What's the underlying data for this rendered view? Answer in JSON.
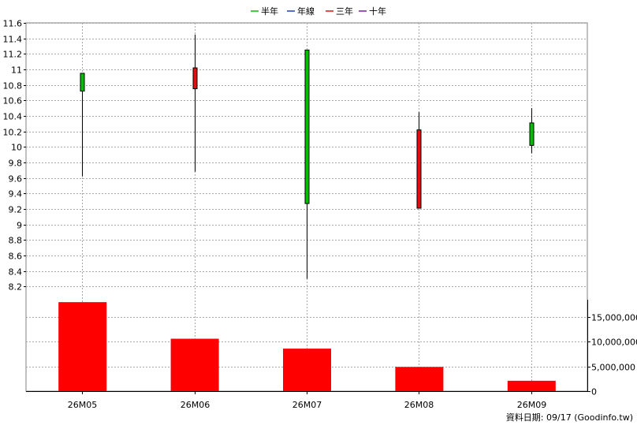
{
  "legend": [
    {
      "label": "半年",
      "color": "#00c000"
    },
    {
      "label": "年線",
      "color": "#1a3fbf"
    },
    {
      "label": "三年",
      "color": "#e01010"
    },
    {
      "label": "十年",
      "color": "#7a1aa8"
    }
  ],
  "footer": "資料日期: 09/17  (Goodinfo.tw)",
  "chart_data": {
    "type": "candlestick",
    "categories": [
      "26M05",
      "26M06",
      "26M07",
      "26M08",
      "26M09"
    ],
    "price": {
      "ylim": [
        8.0,
        11.6
      ],
      "ticks": [
        8.2,
        8.4,
        8.6,
        8.8,
        9,
        9.2,
        9.4,
        9.6,
        9.8,
        10,
        10.2,
        10.4,
        10.6,
        10.8,
        11,
        11.2,
        11.4,
        11.6
      ],
      "tick_labels": [
        "8.2",
        "8.4",
        "8.6",
        "8.8",
        "9",
        "9.2",
        "9.4",
        "9.6",
        "9.8",
        "10",
        "10.2",
        "10.4",
        "10.6",
        "10.8",
        "11",
        "11.2",
        "11.4",
        "11.6"
      ],
      "candles": [
        {
          "open": 10.72,
          "close": 10.95,
          "high": 10.95,
          "low": 9.62,
          "color": "#00c000"
        },
        {
          "open": 11.02,
          "close": 10.75,
          "high": 11.45,
          "low": 9.68,
          "color": "#e01010"
        },
        {
          "open": 9.27,
          "close": 11.25,
          "high": 11.25,
          "low": 8.3,
          "color": "#00c000"
        },
        {
          "open": 10.22,
          "close": 9.21,
          "high": 10.45,
          "low": 9.21,
          "color": "#e01010"
        },
        {
          "open": 10.02,
          "close": 10.31,
          "high": 10.5,
          "low": 9.92,
          "color": "#00c000"
        }
      ]
    },
    "volume": {
      "ylim": [
        0,
        18500000
      ],
      "ticks": [
        0,
        5000000,
        10000000,
        15000000
      ],
      "tick_labels": [
        "0",
        "5,000,000",
        "10,000,000",
        "15,000,000"
      ],
      "values": [
        18000000,
        10600000,
        8600000,
        4900000,
        2100000
      ],
      "color": "#ff0000"
    }
  }
}
